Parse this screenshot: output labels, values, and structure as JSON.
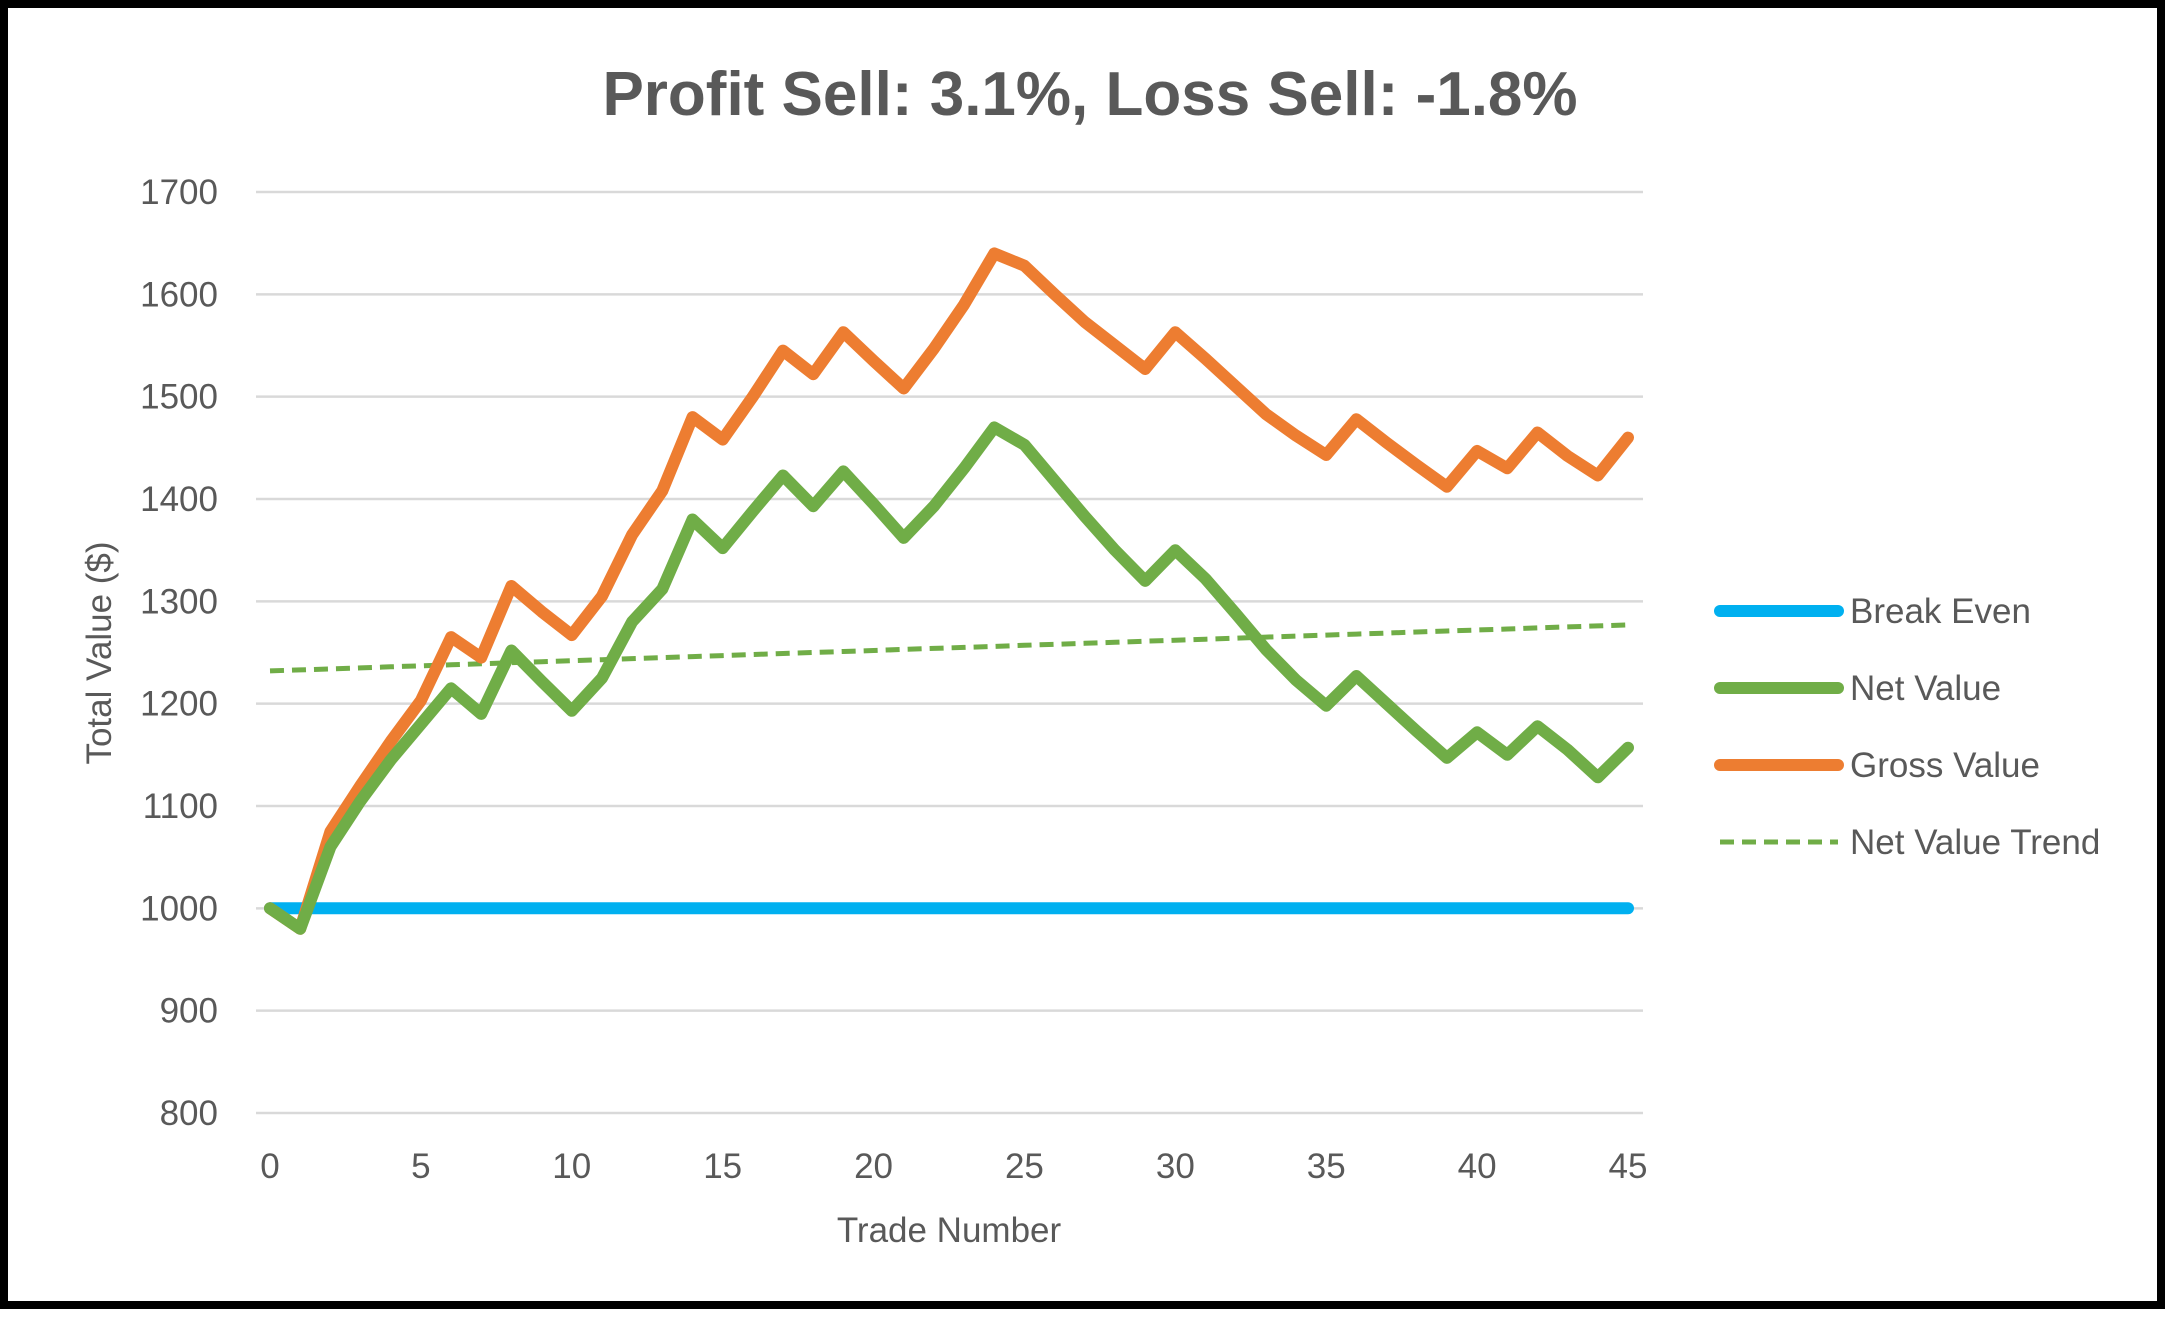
{
  "chart_data": {
    "type": "line",
    "title": "Profit Sell: 3.1%, Loss Sell: -1.8%",
    "xlabel": "Trade Number",
    "ylabel": "Total Value ($)",
    "xlim": [
      0,
      45
    ],
    "ylim": [
      800,
      1700
    ],
    "x_ticks": [
      "0",
      "5",
      "10",
      "15",
      "20",
      "25",
      "30",
      "35",
      "40",
      "45"
    ],
    "y_ticks": [
      "800",
      "900",
      "1000",
      "1100",
      "1200",
      "1300",
      "1400",
      "1500",
      "1600",
      "1700"
    ],
    "grid": "horizontal",
    "legend_position": "right",
    "x": [
      0,
      1,
      2,
      3,
      4,
      5,
      6,
      7,
      8,
      9,
      10,
      11,
      12,
      13,
      14,
      15,
      16,
      17,
      18,
      19,
      20,
      21,
      22,
      23,
      24,
      25,
      26,
      27,
      28,
      29,
      30,
      31,
      32,
      33,
      34,
      35,
      36,
      37,
      38,
      39,
      40,
      41,
      42,
      43,
      44,
      45
    ],
    "series": [
      {
        "name": "Break Even",
        "color": "#00b0f0",
        "style": "solid",
        "values": [
          1000,
          1000,
          1000,
          1000,
          1000,
          1000,
          1000,
          1000,
          1000,
          1000,
          1000,
          1000,
          1000,
          1000,
          1000,
          1000,
          1000,
          1000,
          1000,
          1000,
          1000,
          1000,
          1000,
          1000,
          1000,
          1000,
          1000,
          1000,
          1000,
          1000,
          1000,
          1000,
          1000,
          1000,
          1000,
          1000,
          1000,
          1000,
          1000,
          1000,
          1000,
          1000,
          1000,
          1000,
          1000,
          1000
        ]
      },
      {
        "name": "Net Value",
        "color": "#70ad47",
        "style": "solid",
        "values": [
          1000,
          980,
          1060,
          1105,
          1145,
          1180,
          1215,
          1190,
          1252,
          1222,
          1193,
          1225,
          1280,
          1312,
          1380,
          1352,
          1388,
          1423,
          1393,
          1427,
          1395,
          1362,
          1393,
          1430,
          1470,
          1453,
          1418,
          1383,
          1350,
          1320,
          1350,
          1322,
          1288,
          1253,
          1223,
          1198,
          1227,
          1200,
          1173,
          1147,
          1172,
          1150,
          1178,
          1155,
          1128,
          1157
        ]
      },
      {
        "name": "Gross Value",
        "color": "#ed7d31",
        "style": "solid",
        "values": [
          1000,
          980,
          1075,
          1120,
          1163,
          1203,
          1265,
          1245,
          1315,
          1290,
          1267,
          1305,
          1365,
          1408,
          1480,
          1458,
          1500,
          1545,
          1522,
          1563,
          1535,
          1508,
          1547,
          1590,
          1640,
          1628,
          1600,
          1573,
          1550,
          1527,
          1563,
          1537,
          1510,
          1483,
          1462,
          1443,
          1478,
          1455,
          1433,
          1412,
          1447,
          1430,
          1465,
          1442,
          1423,
          1460
        ]
      },
      {
        "name": "Net Value Trend",
        "color": "#70ad47",
        "style": "dashed",
        "values": [
          1232,
          1233,
          1234,
          1235,
          1236,
          1237,
          1238,
          1239,
          1240,
          1241,
          1242,
          1243,
          1244,
          1245,
          1246,
          1247,
          1248,
          1249,
          1250,
          1251,
          1252,
          1253,
          1254,
          1255,
          1256,
          1257,
          1258,
          1259,
          1260,
          1261,
          1262,
          1263,
          1264,
          1265,
          1266,
          1267,
          1268,
          1269,
          1270,
          1271,
          1272,
          1273,
          1274,
          1275,
          1276,
          1277
        ]
      }
    ],
    "legend": [
      "Break Even",
      "Net Value",
      "Gross Value",
      "Net Value Trend"
    ]
  }
}
